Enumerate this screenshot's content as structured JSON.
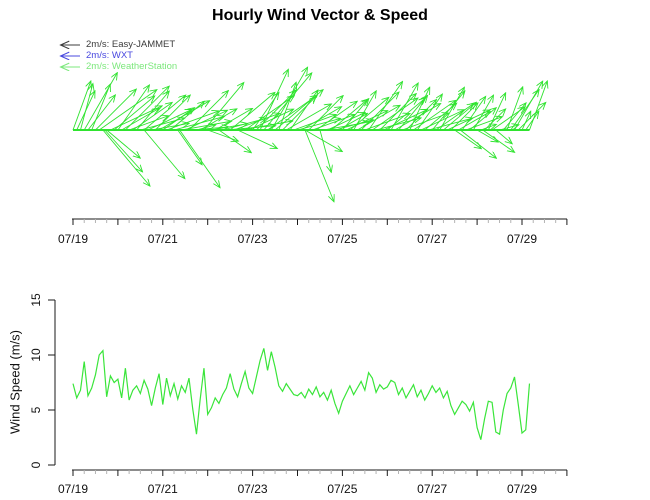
{
  "title": "Hourly Wind Vector & Speed",
  "legend": {
    "items": [
      {
        "label": "2m/s: Easy-JAMMET",
        "color": "#3c3c3c"
      },
      {
        "label": "2m/s: WXT",
        "color": "#4848df"
      },
      {
        "label": "2m/s: WeatherStation",
        "color": "#7ce87c"
      }
    ]
  },
  "colors": {
    "vector_green": "#2fe32f",
    "line_green": "#3ae53a",
    "axis": "#1a1a1a",
    "minor_tick": "#b3b3b3"
  },
  "chart_data": {
    "type": "multi",
    "x_tick_labels": [
      "07/19",
      "07/21",
      "07/23",
      "07/25",
      "07/27",
      "07/29"
    ],
    "x_label_every_hours": 48,
    "x_major_tick_every_hours": 24,
    "x_minor_tick_every_hours": 6,
    "x_axis_span_hours": 264,
    "time_hours": [
      0,
      2,
      4,
      6,
      8,
      10,
      12,
      14,
      16,
      18,
      20,
      22,
      24,
      26,
      28,
      30,
      32,
      34,
      36,
      38,
      40,
      42,
      44,
      46,
      48,
      50,
      52,
      54,
      56,
      58,
      60,
      62,
      64,
      66,
      68,
      70,
      72,
      74,
      76,
      78,
      80,
      82,
      84,
      86,
      88,
      90,
      92,
      94,
      96,
      98,
      100,
      102,
      104,
      106,
      108,
      110,
      112,
      114,
      116,
      118,
      120,
      122,
      124,
      126,
      128,
      130,
      132,
      134,
      136,
      138,
      140,
      142,
      144,
      146,
      148,
      150,
      152,
      154,
      156,
      158,
      160,
      162,
      164,
      166,
      168,
      170,
      172,
      174,
      176,
      178,
      180,
      182,
      184,
      186,
      188,
      190,
      192,
      194,
      196,
      198,
      200,
      202,
      204,
      206,
      208,
      210,
      212,
      214,
      216,
      218,
      220,
      222,
      224,
      226,
      228,
      230,
      232,
      234,
      236,
      238,
      240,
      242,
      244
    ],
    "wind_speed_ms": [
      7.4,
      6.1,
      6.8,
      9.4,
      6.3,
      7.0,
      8.2,
      10.0,
      10.4,
      6.2,
      8.1,
      7.5,
      7.8,
      6.1,
      8.8,
      5.9,
      6.8,
      7.2,
      6.5,
      7.7,
      6.9,
      5.4,
      7.0,
      8.3,
      5.5,
      7.9,
      6.3,
      7.4,
      6.0,
      7.2,
      6.6,
      7.9,
      5.1,
      2.8,
      6.0,
      8.8,
      4.6,
      5.2,
      6.1,
      5.6,
      6.4,
      7.0,
      8.3,
      6.9,
      6.2,
      7.4,
      8.5,
      7.0,
      6.5,
      8.0,
      9.5,
      10.6,
      8.6,
      10.3,
      8.9,
      7.2,
      6.7,
      7.4,
      6.9,
      6.4,
      6.3,
      6.6,
      6.1,
      6.9,
      6.4,
      7.1,
      6.2,
      6.6,
      5.9,
      6.8,
      5.6,
      4.7,
      5.8,
      6.5,
      7.2,
      6.4,
      7.0,
      7.6,
      6.8,
      8.4,
      7.9,
      6.6,
      7.3,
      6.9,
      7.1,
      7.7,
      7.5,
      6.4,
      7.0,
      6.1,
      6.7,
      7.3,
      6.2,
      6.8,
      5.9,
      6.5,
      7.2,
      6.6,
      7.0,
      6.1,
      6.7,
      5.4,
      4.6,
      5.2,
      5.8,
      5.5,
      4.9,
      5.7,
      3.4,
      2.3,
      4.2,
      5.8,
      5.7,
      3.0,
      2.8,
      5.0,
      6.5,
      7.0,
      8.0,
      5.5,
      2.9,
      3.2,
      7.4
    ],
    "wind_dir_deg": [
      70,
      65,
      75,
      60,
      52,
      68,
      45,
      35,
      -50,
      -40,
      25,
      40,
      55,
      30,
      45,
      20,
      35,
      50,
      15,
      40,
      25,
      10,
      45,
      30,
      35,
      20,
      40,
      15,
      -55,
      10,
      25,
      45,
      5,
      15,
      30,
      50,
      -20,
      10,
      30,
      -35,
      15,
      5,
      40,
      20,
      -25,
      10,
      35,
      25,
      55,
      45,
      65,
      50,
      35,
      60,
      40,
      70,
      45,
      30,
      55,
      20,
      15,
      30,
      -30,
      45,
      20,
      35,
      -75,
      10,
      25,
      40,
      15,
      30,
      50,
      25,
      40,
      60,
      30,
      45,
      20,
      55,
      35,
      15,
      45,
      25,
      40,
      60,
      30,
      50,
      20,
      45,
      65,
      35,
      55,
      25,
      40,
      15,
      50,
      35,
      60,
      40,
      25,
      45,
      -35,
      30,
      55,
      20,
      40,
      60,
      -30,
      20,
      45,
      65,
      35,
      -40,
      15,
      50,
      70,
      55,
      60,
      45,
      65,
      55,
      70
    ],
    "extra_long_vectors": [
      {
        "t": 17,
        "speed": 8.0,
        "dir": -48
      },
      {
        "t": 38,
        "speed": 9.0,
        "dir": -50
      },
      {
        "t": 57,
        "speed": 10.0,
        "dir": -55
      },
      {
        "t": 124,
        "speed": 11.0,
        "dir": -68
      },
      {
        "t": 207,
        "speed": 6.5,
        "dir": -38
      },
      {
        "t": 219,
        "speed": 5.5,
        "dir": -35
      }
    ],
    "charts": [
      {
        "type": "vector",
        "name": "hourly-wind-vectors",
        "reference_arrow": "2m/s"
      },
      {
        "type": "line",
        "name": "hourly-wind-speed",
        "ylabel": "Wind Speed (m/s)",
        "ylim": [
          0,
          15
        ],
        "yticks": [
          0,
          5,
          10,
          15
        ],
        "ytick_labels": [
          "0",
          "5",
          "10",
          "15"
        ]
      }
    ]
  }
}
